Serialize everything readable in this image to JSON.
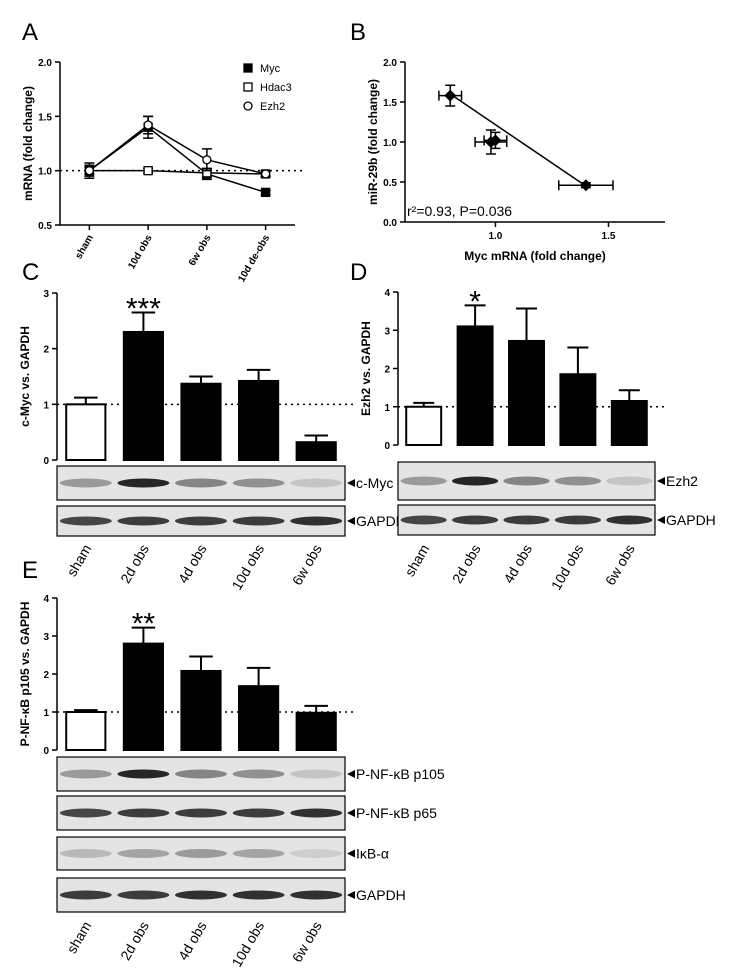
{
  "chart_data": [
    {
      "panel": "A",
      "type": "line",
      "ylabel": "mRNA (fold change)",
      "categories": [
        "sham",
        "10d obs",
        "6w obs",
        "10d de-obs"
      ],
      "series": [
        {
          "name": "Myc",
          "color": "#000000",
          "marker": "square",
          "marker_fill": "#000000",
          "values": [
            1.0,
            1.4,
            0.97,
            0.8
          ],
          "errors": [
            0.05,
            0.1,
            0.05,
            0.02
          ]
        },
        {
          "name": "Hdac3",
          "color": "#000000",
          "marker": "square",
          "marker_fill": "#ffffff",
          "values": [
            1.0,
            1.0,
            0.98,
            0.97
          ],
          "errors": [
            0.03,
            0.02,
            0.04,
            0.02
          ]
        },
        {
          "name": "Ezh2",
          "color": "#000000",
          "marker": "circle",
          "marker_fill": "#ffffff",
          "values": [
            1.0,
            1.42,
            1.1,
            0.97
          ],
          "errors": [
            0.07,
            0.08,
            0.1,
            0.03
          ]
        }
      ],
      "ylim": [
        0.5,
        2.0
      ],
      "yticks": [
        0.5,
        {
          "value": 1.0,
          "label": "1.0"
        },
        1.5,
        {
          "value": 2.0,
          "label": "2.0"
        }
      ],
      "hline": 1,
      "legend": "top-right"
    },
    {
      "panel": "B",
      "type": "scatter",
      "xlabel": "Myc mRNA (fold change)",
      "ylabel": "miR-29b (fold change)",
      "x": [
        0.8,
        0.98,
        1.0,
        1.4
      ],
      "y": [
        1.58,
        1.0,
        1.02,
        0.46
      ],
      "x_errors": [
        0.05,
        0.07,
        0.05,
        0.12
      ],
      "y_errors": [
        0.13,
        0.15,
        0.1,
        0.03
      ],
      "color": "#000000",
      "fit": {
        "x": [
          0.8,
          1.4
        ],
        "y": [
          1.6,
          0.45
        ]
      },
      "annotation": "r²=0.93, P=0.036",
      "xlim": [
        0.6,
        1.75
      ],
      "xticks": [
        {
          "value": 1.0,
          "label": "1.0"
        },
        1.5
      ],
      "ylim": [
        0,
        2.0
      ],
      "yticks": [
        {
          "value": 0,
          "label": "0.0"
        },
        0.5,
        {
          "value": 1.0,
          "label": "1.0"
        },
        1.5,
        {
          "value": 2.0,
          "label": "2.0"
        }
      ]
    },
    {
      "panel": "C",
      "type": "bar",
      "ylabel": "c-Myc vs. GAPDH",
      "categories": [
        "sham",
        "2d obs",
        "4d obs",
        "10d obs",
        "6w obs"
      ],
      "values": [
        1.0,
        2.3,
        1.37,
        1.42,
        0.32
      ],
      "errors": [
        0.12,
        0.35,
        0.13,
        0.2,
        0.12
      ],
      "colors": [
        "#ffffff",
        "#000000",
        "#000000",
        "#000000",
        "#000000"
      ],
      "ylim": [
        0,
        3
      ],
      "yticks": [
        0,
        1,
        2,
        3
      ],
      "hline": 1,
      "annotations": [
        {
          "text": "***",
          "x": "2d obs"
        }
      ],
      "blots": [
        "c-Myc",
        "GAPDH"
      ]
    },
    {
      "panel": "D",
      "type": "bar",
      "ylabel": "Ezh2 vs. GAPDH",
      "categories": [
        "sham",
        "2d obs",
        "4d obs",
        "10d obs",
        "6w obs"
      ],
      "values": [
        1.0,
        3.1,
        2.72,
        1.85,
        1.15
      ],
      "errors": [
        0.1,
        0.55,
        0.85,
        0.7,
        0.28
      ],
      "colors": [
        "#ffffff",
        "#000000",
        "#000000",
        "#000000",
        "#000000"
      ],
      "ylim": [
        0,
        4
      ],
      "yticks": [
        0,
        1,
        2,
        3,
        4
      ],
      "hline": 1,
      "annotations": [
        {
          "text": "*",
          "x": "2d obs"
        }
      ],
      "blots": [
        "Ezh2",
        "GAPDH"
      ]
    },
    {
      "panel": "E",
      "type": "bar",
      "ylabel": "P-NF-κB p105 vs. GAPDH",
      "categories": [
        "sham",
        "2d obs",
        "4d obs",
        "10d obs",
        "6w obs"
      ],
      "values": [
        1.0,
        2.8,
        2.08,
        1.68,
        0.98
      ],
      "errors": [
        0.05,
        0.42,
        0.38,
        0.48,
        0.18
      ],
      "colors": [
        "#ffffff",
        "#000000",
        "#000000",
        "#000000",
        "#000000"
      ],
      "ylim": [
        0,
        4
      ],
      "yticks": [
        0,
        1,
        2,
        3,
        4
      ],
      "hline": 1,
      "annotations": [
        {
          "text": "**",
          "x": "2d obs"
        }
      ],
      "blots": [
        "P-NF-κB p105",
        "P-NF-κB p65",
        "IκB-α",
        "GAPDH"
      ]
    }
  ]
}
